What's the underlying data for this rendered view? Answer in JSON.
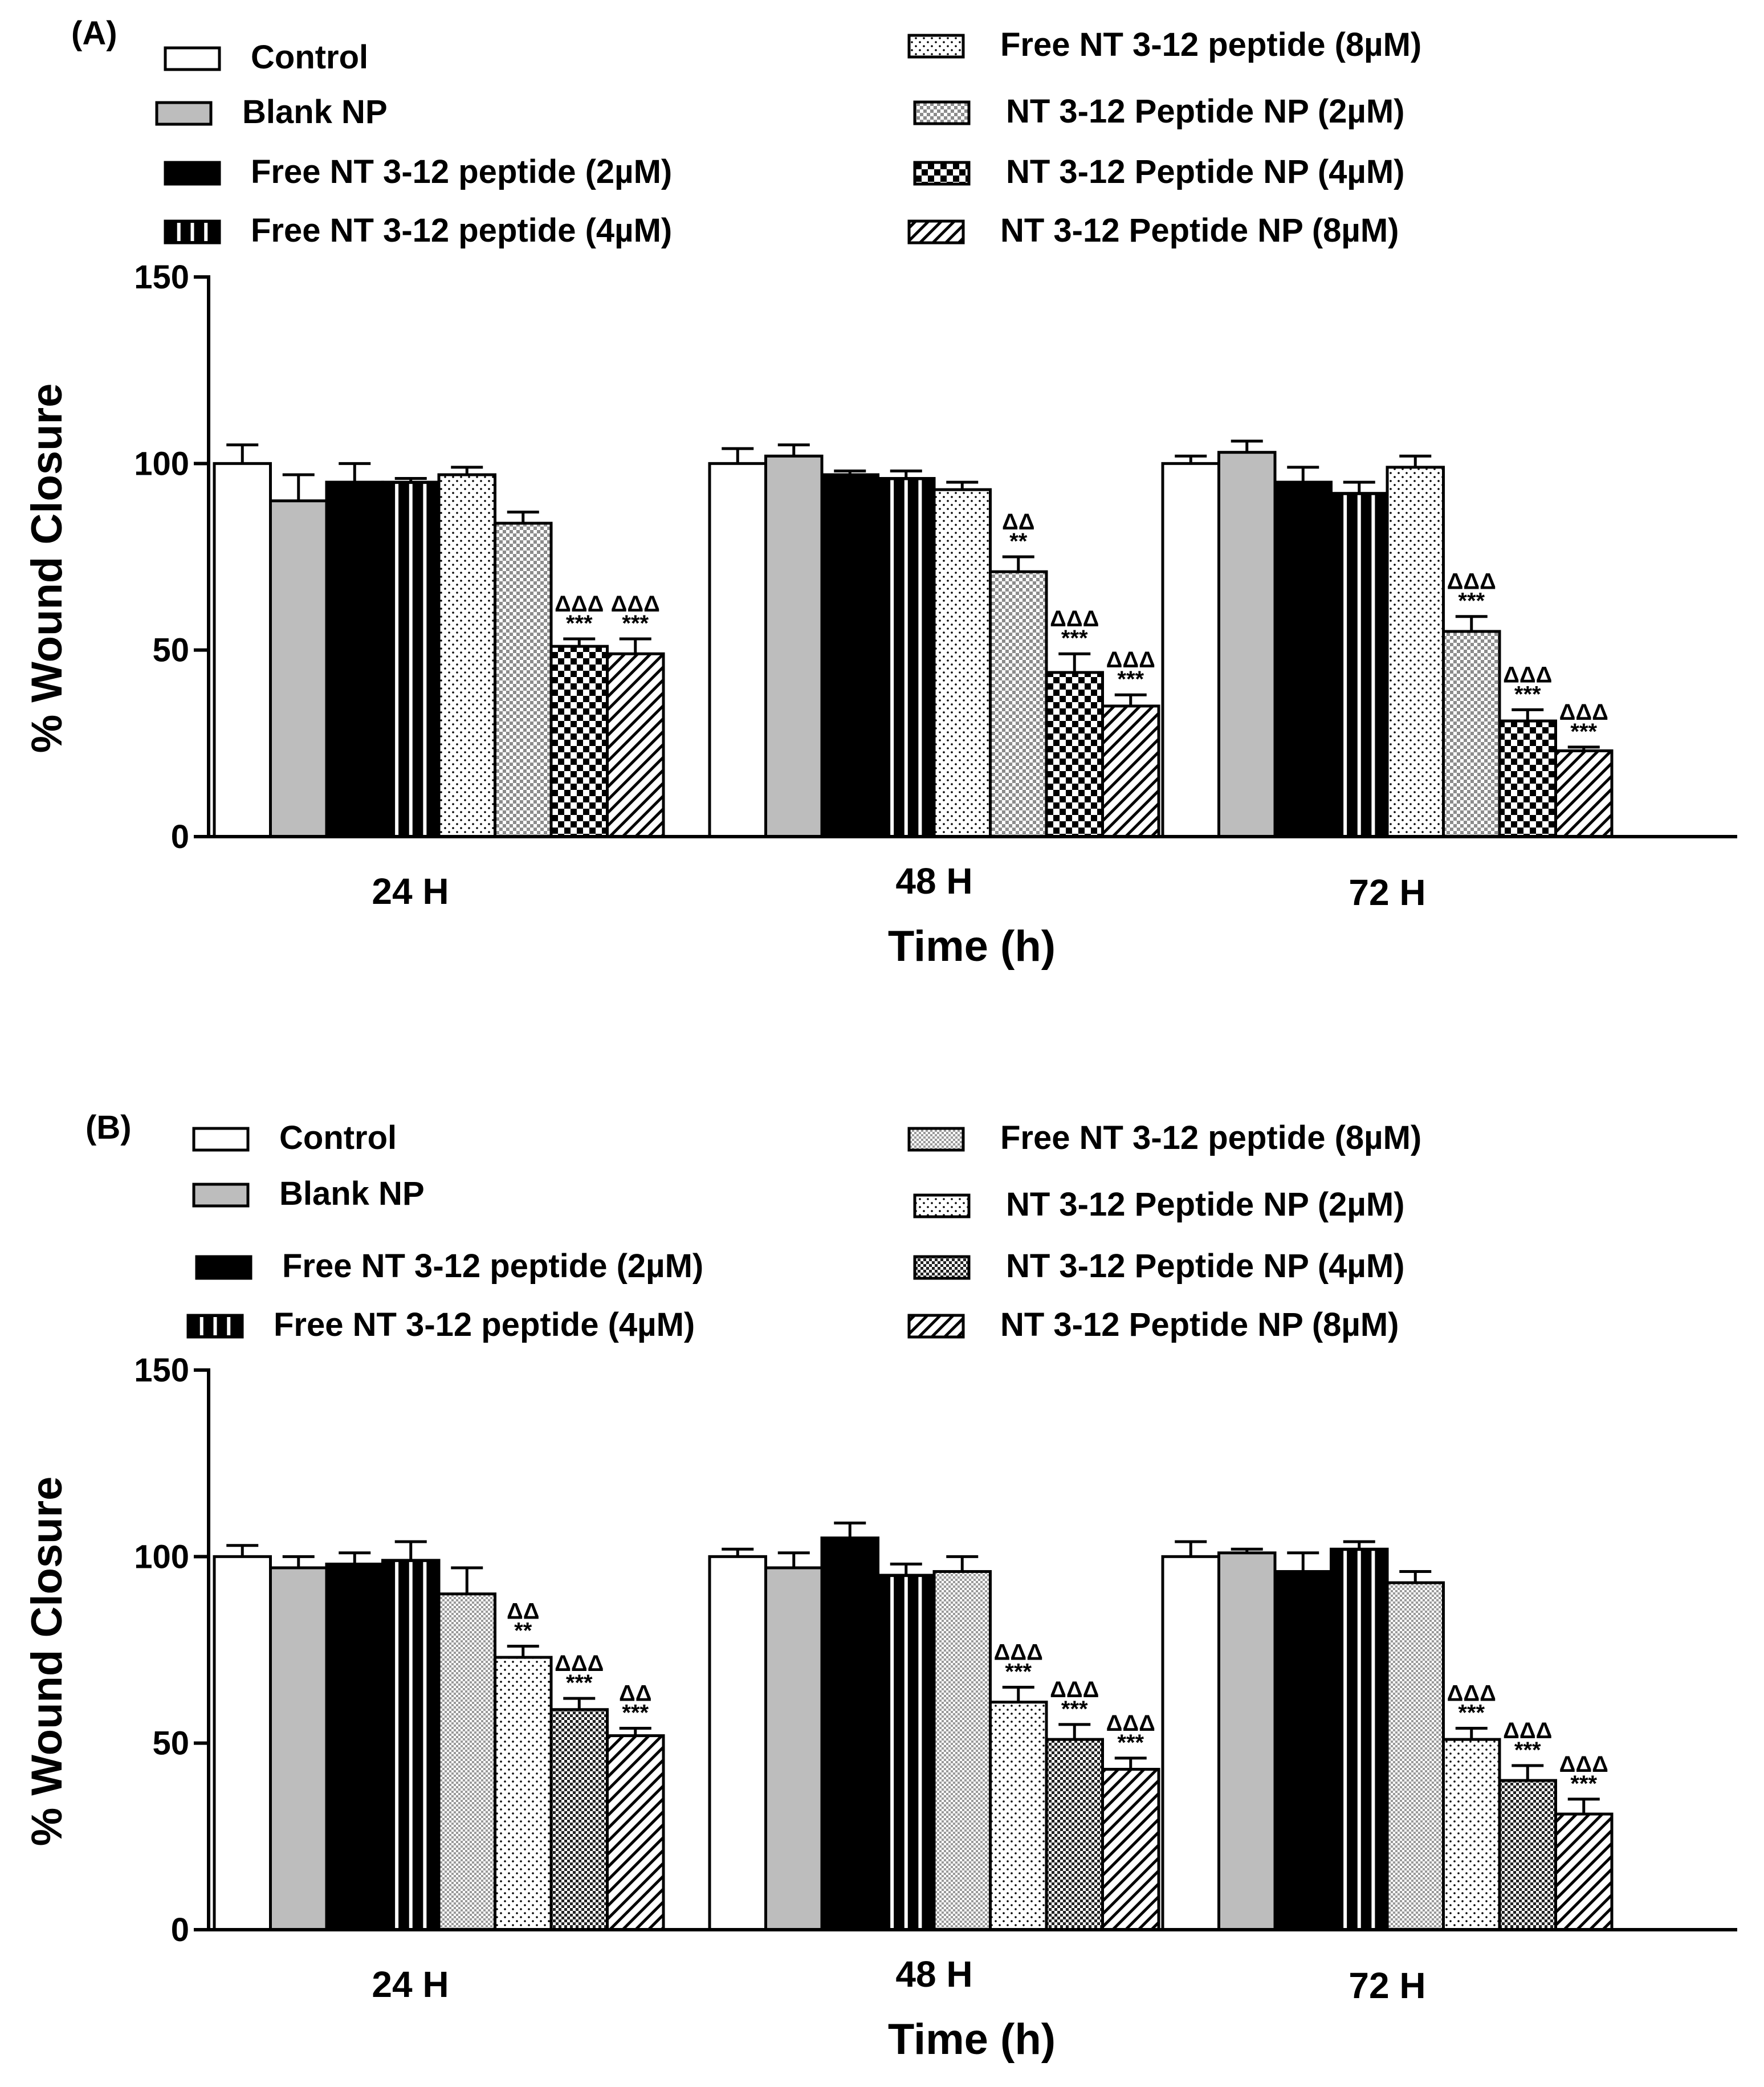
{
  "chart_data": [
    {
      "type": "bar",
      "panel": "(A)",
      "xlabel": "Time (h)",
      "ylabel": "% Wound Closure",
      "ylim": [
        0,
        150
      ],
      "yticks": [
        "0",
        "50",
        "100",
        "150"
      ],
      "categories": [
        "24 H",
        "48 H",
        "72 H"
      ],
      "series": [
        {
          "name": "Control",
          "pattern": "white",
          "values": [
            100,
            100,
            100
          ],
          "errors": [
            5,
            4,
            2
          ]
        },
        {
          "name": "Blank NP",
          "pattern": "gray",
          "values": [
            90,
            102,
            103
          ],
          "errors": [
            7,
            3,
            3
          ]
        },
        {
          "name": "Free NT 3-12 peptide (2µM)",
          "pattern": "black",
          "values": [
            95,
            97,
            95
          ],
          "errors": [
            5,
            1,
            4
          ]
        },
        {
          "name": "Free NT 3-12 peptide (4µM)",
          "pattern": "vlines",
          "values": [
            95,
            96,
            92
          ],
          "errors": [
            1,
            2,
            3
          ]
        },
        {
          "name": "Free NT 3-12 peptide (8µM)",
          "pattern": "dots",
          "values": [
            97,
            93,
            99
          ],
          "errors": [
            2,
            2,
            3
          ]
        },
        {
          "name": "NT 3-12 Peptide NP (2µM)",
          "pattern": "checker",
          "values": [
            84,
            71,
            55
          ],
          "errors": [
            3,
            4,
            4
          ]
        },
        {
          "name": "NT 3-12 Peptide NP (4µM)",
          "pattern": "bigchecker",
          "values": [
            51,
            44,
            31
          ],
          "errors": [
            2,
            5,
            3
          ]
        },
        {
          "name": "NT 3-12 Peptide NP (8µM)",
          "pattern": "hatch",
          "values": [
            49,
            35,
            23
          ],
          "errors": [
            4,
            3,
            1
          ]
        }
      ],
      "annotations": [
        {
          "series": 6,
          "category": 0,
          "stars": "***",
          "triangles": "ΔΔΔ"
        },
        {
          "series": 7,
          "category": 0,
          "stars": "***",
          "triangles": "ΔΔΔ"
        },
        {
          "series": 5,
          "category": 1,
          "stars": "**",
          "triangles": "ΔΔ"
        },
        {
          "series": 6,
          "category": 1,
          "stars": "***",
          "triangles": "ΔΔΔ"
        },
        {
          "series": 7,
          "category": 1,
          "stars": "***",
          "triangles": "ΔΔΔ"
        },
        {
          "series": 5,
          "category": 2,
          "stars": "***",
          "triangles": "ΔΔΔ"
        },
        {
          "series": 6,
          "category": 2,
          "stars": "***",
          "triangles": "ΔΔΔ"
        },
        {
          "series": 7,
          "category": 2,
          "stars": "***",
          "triangles": "ΔΔΔ"
        }
      ]
    },
    {
      "type": "bar",
      "panel": "(B)",
      "xlabel": "Time (h)",
      "ylabel": "% Wound Closure",
      "ylim": [
        0,
        150
      ],
      "yticks": [
        "0",
        "50",
        "100",
        "150"
      ],
      "categories": [
        "24 H",
        "48 H",
        "72 H"
      ],
      "series": [
        {
          "name": "Control",
          "pattern": "white",
          "values": [
            100,
            100,
            100
          ],
          "errors": [
            3,
            2,
            4
          ]
        },
        {
          "name": "Blank NP",
          "pattern": "gray",
          "values": [
            97,
            97,
            101
          ],
          "errors": [
            3,
            4,
            1
          ]
        },
        {
          "name": "Free NT 3-12 peptide (2µM)",
          "pattern": "black",
          "values": [
            98,
            105,
            96
          ],
          "errors": [
            3,
            4,
            5
          ]
        },
        {
          "name": "Free NT 3-12 peptide (4µM)",
          "pattern": "vlines",
          "values": [
            99,
            95,
            102
          ],
          "errors": [
            5,
            3,
            2
          ]
        },
        {
          "name": "Free NT 3-12 peptide (8µM)",
          "pattern": "fine",
          "values": [
            90,
            96,
            93
          ],
          "errors": [
            7,
            4,
            3
          ]
        },
        {
          "name": "NT 3-12 Peptide NP (2µM)",
          "pattern": "dots",
          "values": [
            73,
            61,
            51
          ],
          "errors": [
            3,
            4,
            3
          ]
        },
        {
          "name": "NT 3-12 Peptide NP (4µM)",
          "pattern": "darkchecker",
          "values": [
            59,
            51,
            40
          ],
          "errors": [
            3,
            4,
            4
          ]
        },
        {
          "name": "NT 3-12 Peptide NP (8µM)",
          "pattern": "hatch",
          "values": [
            52,
            43,
            31
          ],
          "errors": [
            2,
            3,
            4
          ]
        }
      ],
      "annotations": [
        {
          "series": 5,
          "category": 0,
          "stars": "**",
          "triangles": "ΔΔ"
        },
        {
          "series": 6,
          "category": 0,
          "stars": "***",
          "triangles": "ΔΔΔ"
        },
        {
          "series": 7,
          "category": 0,
          "stars": "***",
          "triangles": "ΔΔ"
        },
        {
          "series": 5,
          "category": 1,
          "stars": "***",
          "triangles": "ΔΔΔ"
        },
        {
          "series": 6,
          "category": 1,
          "stars": "***",
          "triangles": "ΔΔΔ"
        },
        {
          "series": 7,
          "category": 1,
          "stars": "***",
          "triangles": "ΔΔΔ"
        },
        {
          "series": 5,
          "category": 2,
          "stars": "***",
          "triangles": "ΔΔΔ"
        },
        {
          "series": 6,
          "category": 2,
          "stars": "***",
          "triangles": "ΔΔΔ"
        },
        {
          "series": 7,
          "category": 2,
          "stars": "***",
          "triangles": "ΔΔΔ"
        }
      ]
    }
  ]
}
